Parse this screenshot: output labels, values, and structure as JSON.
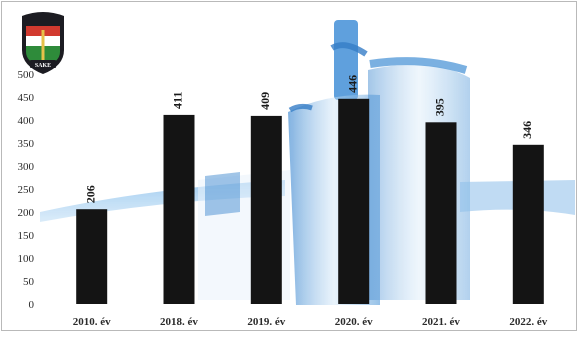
{
  "chart_data": {
    "type": "bar",
    "title": "",
    "xlabel": "",
    "ylabel": "",
    "categories": [
      "2010. év",
      "2018. év",
      "2019. év",
      "2020. év",
      "2021. év",
      "2022. év"
    ],
    "values": [
      206,
      411,
      409,
      446,
      395,
      346
    ],
    "value_labels": [
      "206",
      "411",
      "409",
      "446",
      "395",
      "346"
    ],
    "yticks": [
      "0",
      "50",
      "100",
      "150",
      "200",
      "250",
      "300",
      "350",
      "400",
      "450",
      "500"
    ],
    "ylim": [
      0,
      500
    ],
    "grid": false,
    "legend": "none",
    "colors": {
      "bar": "#141414",
      "axis_text": "#2b2b2b",
      "label_text": "#1a1a1a",
      "background_blue": "#3b8fd6"
    },
    "background": {
      "description_icon": "building-photo-watermark"
    }
  },
  "logo": {
    "icon": "coat-of-arms-shield-icon",
    "text": "SAKE",
    "colors": {
      "red": "#d23a2f",
      "white": "#ffffff",
      "green": "#2e8b3a",
      "dark": "#1c1c22"
    }
  }
}
